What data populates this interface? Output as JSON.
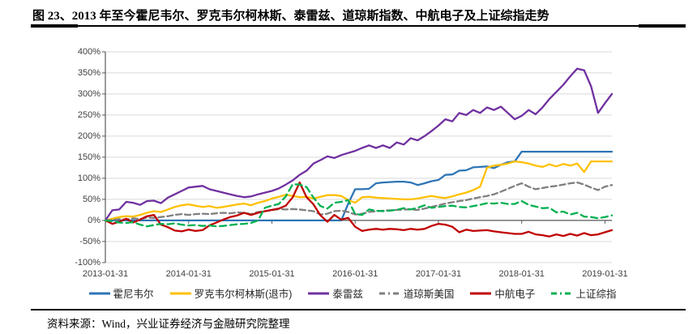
{
  "title": "图 23、2013 年至今霍尼韦尔、罗克韦尔柯林斯、泰雷兹、道琼斯指数、中航电子及上证综指走势",
  "source_note": "资料来源：Wind，兴业证券经济与金融研究院整理",
  "chart_data": {
    "type": "line",
    "title": "",
    "xlabel": "",
    "ylabel": "",
    "ylim": [
      -100,
      400
    ],
    "y_tick_step": 50,
    "y_tick_labels": [
      "400%",
      "350%",
      "300%",
      "250%",
      "200%",
      "150%",
      "100%",
      "50%",
      "0%",
      "-50%",
      "-100%"
    ],
    "x_tick_labels": [
      "2013-01-31",
      "2014-01-31",
      "2015-01-31",
      "2016-01-31",
      "2017-01-31",
      "2018-01-31",
      "2019-01-31"
    ],
    "x_tick_month_indices": [
      0,
      12,
      24,
      36,
      48,
      60,
      72
    ],
    "grid": "horizontal-only",
    "legend_position": "bottom",
    "x_unit": "monthly points from 2013-01 to 2019-02, values in percent return",
    "series": [
      {
        "name": "霍尼韦尔",
        "color": "#2E75B6",
        "dash": "",
        "values": [
          0,
          0,
          0,
          0,
          0,
          0,
          0,
          0,
          0,
          0,
          0,
          0,
          0,
          0,
          0,
          0,
          0,
          0,
          0,
          0,
          0,
          0,
          0,
          0,
          0,
          0,
          0,
          0,
          0,
          0,
          0,
          0,
          0,
          0,
          0,
          40,
          74,
          74,
          75,
          88,
          90,
          91,
          92,
          92,
          90,
          84,
          88,
          93,
          96,
          108,
          109,
          118,
          119,
          126,
          127,
          128,
          124,
          132,
          138,
          140,
          163,
          163,
          163,
          163,
          163,
          163,
          163,
          163,
          163,
          163,
          163,
          163,
          163,
          163
        ]
      },
      {
        "name": "罗克韦尔柯林斯(退市)",
        "color": "#FFC000",
        "dash": "",
        "values": [
          0,
          4,
          8,
          10,
          9,
          13,
          18,
          22,
          20,
          26,
          32,
          36,
          38,
          35,
          32,
          34,
          30,
          32,
          35,
          38,
          40,
          36,
          42,
          46,
          52,
          56,
          61,
          58,
          55,
          56,
          52,
          56,
          60,
          60,
          58,
          48,
          42,
          55,
          56,
          54,
          53,
          52,
          51,
          50,
          50,
          52,
          55,
          58,
          55,
          53,
          57,
          62,
          66,
          72,
          80,
          125,
          130,
          132,
          135,
          140,
          138,
          135,
          130,
          127,
          133,
          128,
          134,
          130,
          135,
          115,
          140,
          140,
          140,
          140
        ]
      },
      {
        "name": "泰雷兹",
        "color": "#7030A0",
        "dash": "",
        "values": [
          0,
          24,
          26,
          44,
          42,
          37,
          46,
          47,
          41,
          54,
          62,
          70,
          78,
          80,
          82,
          74,
          70,
          66,
          62,
          58,
          55,
          57,
          62,
          66,
          70,
          76,
          85,
          95,
          108,
          118,
          135,
          143,
          152,
          148,
          155,
          160,
          165,
          172,
          178,
          172,
          178,
          172,
          185,
          180,
          195,
          190,
          200,
          212,
          225,
          240,
          235,
          255,
          250,
          262,
          255,
          268,
          262,
          270,
          255,
          240,
          248,
          262,
          252,
          268,
          288,
          305,
          322,
          342,
          360,
          356,
          318,
          255,
          278,
          300
        ]
      },
      {
        "name": "道琼斯美国",
        "color": "#7F7F7F",
        "dash": "7 4",
        "values": [
          0,
          1,
          3,
          2,
          5,
          3,
          7,
          6,
          8,
          10,
          13,
          15,
          13,
          15,
          16,
          15,
          17,
          18,
          17,
          19,
          18,
          15,
          20,
          22,
          24,
          27,
          26,
          27,
          26,
          24,
          22,
          14,
          16,
          22,
          23,
          20,
          14,
          16,
          20,
          22,
          23,
          24,
          25,
          26,
          26,
          25,
          28,
          32,
          36,
          40,
          43,
          46,
          48,
          52,
          55,
          58,
          62,
          68,
          75,
          82,
          88,
          80,
          74,
          77,
          80,
          82,
          85,
          88,
          90,
          85,
          78,
          72,
          80,
          84
        ]
      },
      {
        "name": "中航电子",
        "color": "#C00000",
        "dash": "",
        "values": [
          0,
          -8,
          -3,
          4,
          -5,
          2,
          10,
          13,
          -10,
          -16,
          -24,
          -26,
          -22,
          -25,
          -23,
          -12,
          -5,
          2,
          8,
          12,
          18,
          13,
          18,
          22,
          25,
          28,
          35,
          55,
          90,
          55,
          38,
          12,
          -3,
          13,
          2,
          6,
          -15,
          -25,
          -22,
          -20,
          -22,
          -20,
          -21,
          -23,
          -20,
          -22,
          -20,
          -13,
          -8,
          -10,
          -15,
          -28,
          -22,
          -25,
          -24,
          -23,
          -26,
          -28,
          -30,
          -32,
          -32,
          -27,
          -33,
          -35,
          -38,
          -33,
          -37,
          -32,
          -36,
          -30,
          -35,
          -33,
          -28,
          -23
        ]
      },
      {
        "name": "上证综指",
        "color": "#00B050",
        "dash": "8 5",
        "values": [
          0,
          -2,
          -5,
          -6,
          -4,
          -10,
          -14,
          -11,
          -8,
          -9,
          -7,
          -10,
          -12,
          -11,
          -13,
          -12,
          -14,
          -13,
          -11,
          -9,
          -8,
          -6,
          0,
          30,
          35,
          39,
          57,
          86,
          85,
          79,
          54,
          34,
          28,
          42,
          44,
          48,
          15,
          13,
          26,
          23,
          22,
          23,
          25,
          29,
          26,
          30,
          36,
          30,
          32,
          34,
          35,
          32,
          31,
          34,
          37,
          41,
          40,
          42,
          39,
          39,
          46,
          37,
          33,
          29,
          30,
          19,
          21,
          14,
          18,
          9,
          8,
          5,
          8,
          12
        ]
      }
    ]
  }
}
